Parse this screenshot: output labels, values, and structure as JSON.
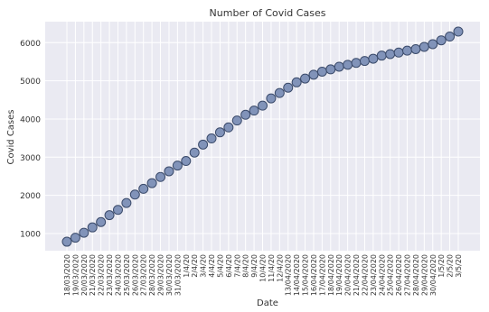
{
  "chart_data": {
    "type": "scatter",
    "title": "Number of Covid Cases",
    "xlabel": "Date",
    "ylabel": "Covid Cases",
    "grid": true,
    "ylim": [
      550,
      6550
    ],
    "yticks": [
      1000,
      2000,
      3000,
      4000,
      5000,
      6000
    ],
    "x": [
      "18/03/2020",
      "19/03/2020",
      "20/03/2020",
      "21/03/2020",
      "22/03/2020",
      "23/03/2020",
      "24/03/2020",
      "25/03/2020",
      "26/03/2020",
      "27/03/2020",
      "28/03/2020",
      "29/03/2020",
      "30/03/2020",
      "31/03/2020",
      "1/4/20",
      "2/4/20",
      "3/4/20",
      "4/4/20",
      "5/4/20",
      "6/4/20",
      "7/4/20",
      "8/4/20",
      "9/4/20",
      "10/4/20",
      "11/4/20",
      "12/4/20",
      "13/04/2020",
      "14/04/2020",
      "15/04/2020",
      "16/04/2020",
      "17/04/2020",
      "18/04/2020",
      "19/04/2020",
      "20/04/2020",
      "21/04/2020",
      "22/04/2020",
      "23/04/2020",
      "24/04/2020",
      "25/04/2020",
      "26/04/2020",
      "27/04/2020",
      "28/04/2020",
      "29/04/2020",
      "30/04/2020",
      "1/5/20",
      "2/5/20",
      "3/5/20"
    ],
    "y": [
      785,
      890,
      1020,
      1160,
      1300,
      1480,
      1620,
      1800,
      2020,
      2170,
      2320,
      2480,
      2630,
      2780,
      2900,
      3120,
      3330,
      3490,
      3650,
      3780,
      3960,
      4110,
      4220,
      4350,
      4540,
      4680,
      4820,
      4960,
      5060,
      5160,
      5240,
      5300,
      5370,
      5420,
      5470,
      5520,
      5580,
      5660,
      5700,
      5740,
      5790,
      5830,
      5890,
      5960,
      6060,
      6160,
      6290
    ]
  },
  "colors": {
    "background": "#eaeaf2",
    "grid": "#ffffff",
    "marker_fill": "#8193b9",
    "marker_edge": "#3a4a6a",
    "text": "#333333"
  }
}
